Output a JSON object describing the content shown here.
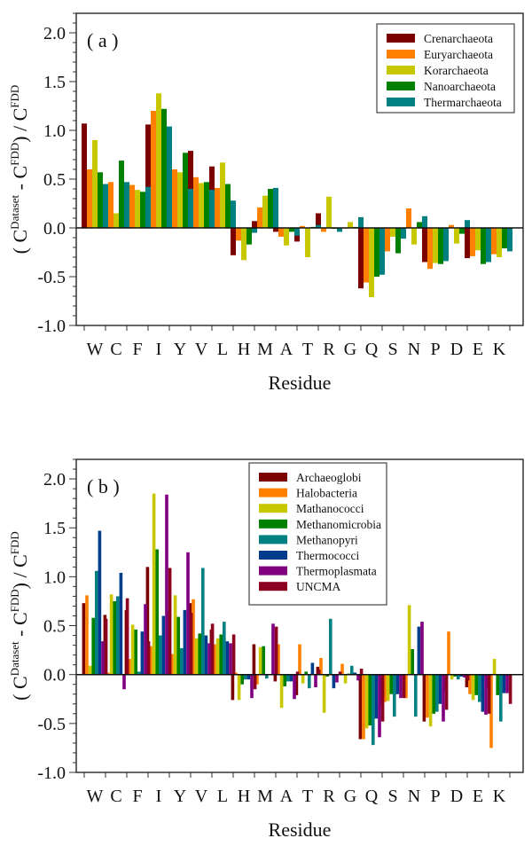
{
  "chart_data": [
    {
      "type": "bar",
      "panel_label": "( a )",
      "title": "",
      "xlabel": "Residue",
      "ylabel": "( C^Dataset - C^FDD ) / C^FDD",
      "ylim": [
        -1.0,
        2.2
      ],
      "yticks": [
        -1.0,
        -0.5,
        0.0,
        0.5,
        1.0,
        1.5,
        2.0
      ],
      "ytick_labels": [
        "-1.0",
        "-0.5",
        "0.0",
        "0.5",
        "1.0",
        "1.5",
        "2.0"
      ],
      "grid": false,
      "legend_position": "upper right",
      "categories": [
        "W",
        "C",
        "F",
        "I",
        "Y",
        "V",
        "L",
        "H",
        "M",
        "A",
        "T",
        "R",
        "G",
        "Q",
        "S",
        "N",
        "P",
        "D",
        "E",
        "K"
      ],
      "series": [
        {
          "name": "Crenarchaeota",
          "color": "#7b0000",
          "values": [
            1.07,
            0.02,
            0.35,
            1.06,
            0.95,
            0.79,
            0.63,
            -0.28,
            0.07,
            -0.04,
            -0.14,
            0.15,
            0.0,
            -0.62,
            -0.27,
            -0.01,
            -0.35,
            -0.24,
            -0.31,
            -0.25
          ]
        },
        {
          "name": "Euryarchaeota",
          "color": "#ff8000",
          "values": [
            0.6,
            0.47,
            0.44,
            1.2,
            0.6,
            0.52,
            0.41,
            -0.13,
            0.21,
            -0.09,
            0.02,
            -0.04,
            0.0,
            -0.56,
            -0.24,
            0.2,
            -0.42,
            0.03,
            -0.29,
            -0.27
          ]
        },
        {
          "name": "Korarchaeota",
          "color": "#c8c800",
          "values": [
            0.9,
            0.15,
            0.39,
            1.38,
            0.57,
            0.46,
            0.67,
            -0.33,
            0.33,
            -0.18,
            -0.3,
            0.32,
            0.06,
            -0.71,
            -0.09,
            -0.17,
            -0.36,
            -0.16,
            -0.23,
            -0.3
          ]
        },
        {
          "name": "Nanoarchaeota",
          "color": "#008000",
          "values": [
            0.57,
            0.69,
            0.37,
            1.22,
            0.77,
            0.47,
            0.45,
            -0.17,
            0.4,
            -0.04,
            0.01,
            -0.01,
            0.01,
            -0.5,
            -0.26,
            0.06,
            -0.37,
            -0.06,
            -0.37,
            -0.21
          ]
        },
        {
          "name": "Thermarchaeota",
          "color": "#008080",
          "values": [
            0.45,
            0.47,
            0.42,
            1.04,
            0.4,
            0.39,
            0.28,
            -0.05,
            0.41,
            -0.08,
            0.03,
            -0.04,
            0.11,
            -0.48,
            -0.11,
            0.12,
            -0.34,
            0.08,
            -0.35,
            -0.24
          ]
        }
      ]
    },
    {
      "type": "bar",
      "panel_label": "( b )",
      "title": "",
      "xlabel": "Residue",
      "ylabel": "( C^Dataset - C^FDD ) / C^FDD",
      "ylim": [
        -1.0,
        2.2
      ],
      "yticks": [
        -1.0,
        -0.5,
        0.0,
        0.5,
        1.0,
        1.5,
        2.0
      ],
      "ytick_labels": [
        "-1.0",
        "-0.5",
        "0.0",
        "0.5",
        "1.0",
        "1.5",
        "2.0"
      ],
      "grid": false,
      "legend_position": "upper center",
      "categories": [
        "W",
        "C",
        "F",
        "I",
        "Y",
        "V",
        "L",
        "H",
        "M",
        "A",
        "T",
        "R",
        "G",
        "Q",
        "S",
        "N",
        "P",
        "D",
        "E",
        "K"
      ],
      "series": [
        {
          "name": "Archaeoglobi",
          "color": "#7b0000",
          "values": [
            0.73,
            0.61,
            0.66,
            1.1,
            0.65,
            0.73,
            0.46,
            -0.26,
            0.31,
            -0.07,
            -0.21,
            0.08,
            0.0,
            -0.66,
            -0.31,
            -0.02,
            -0.48,
            -0.17,
            -0.13,
            -0.14
          ]
        },
        {
          "name": "Halobacteria",
          "color": "#ff8000",
          "values": [
            0.81,
            0.02,
            0.16,
            0.29,
            0.21,
            0.77,
            0.31,
            0.02,
            -0.1,
            0.31,
            0.31,
            0.17,
            0.11,
            -0.66,
            -0.28,
            -0.24,
            -0.44,
            0.44,
            -0.2,
            -0.75
          ]
        },
        {
          "name": "Mathanococci",
          "color": "#c8c800",
          "values": [
            0.09,
            0.82,
            0.51,
            1.85,
            0.81,
            0.37,
            0.37,
            -0.26,
            0.28,
            -0.34,
            -0.09,
            -0.39,
            -0.09,
            -0.55,
            -0.27,
            0.71,
            -0.53,
            -0.05,
            -0.26,
            0.16
          ]
        },
        {
          "name": "Methanomicrobia",
          "color": "#008000",
          "values": [
            0.58,
            0.75,
            0.46,
            1.28,
            0.59,
            0.42,
            0.41,
            -0.1,
            0.29,
            -0.12,
            0.03,
            -0.02,
            0.01,
            -0.52,
            -0.2,
            0.26,
            -0.4,
            -0.02,
            -0.21,
            -0.21
          ]
        },
        {
          "name": "Methanopyri",
          "color": "#008080",
          "values": [
            1.06,
            0.8,
            0.03,
            0.4,
            0.27,
            1.09,
            0.54,
            -0.05,
            -0.04,
            -0.07,
            -0.14,
            0.57,
            0.09,
            -0.72,
            -0.43,
            -0.43,
            -0.38,
            -0.05,
            -0.28,
            -0.48
          ]
        },
        {
          "name": "Thermococci",
          "color": "#003c8c",
          "values": [
            1.47,
            1.04,
            0.44,
            0.6,
            0.66,
            0.4,
            0.34,
            -0.05,
            0.0,
            -0.07,
            0.12,
            -0.14,
            0.02,
            -0.45,
            -0.2,
            0.49,
            -0.3,
            -0.02,
            -0.38,
            -0.19
          ]
        },
        {
          "name": "Thermoplasmata",
          "color": "#800080",
          "values": [
            0.34,
            -0.15,
            0.72,
            1.84,
            1.25,
            0.32,
            0.32,
            -0.24,
            0.52,
            -0.25,
            -0.13,
            -0.08,
            -0.06,
            -0.64,
            -0.24,
            0.54,
            -0.48,
            -0.03,
            -0.41,
            -0.19
          ]
        },
        {
          "name": "UNCMA",
          "color": "#8c0020",
          "values": [
            0.57,
            0.78,
            0.34,
            1.09,
            0.63,
            0.52,
            0.41,
            -0.15,
            0.49,
            0.03,
            0.05,
            0.03,
            0.06,
            -0.48,
            -0.24,
            0.0,
            -0.36,
            -0.06,
            -0.4,
            -0.3
          ]
        }
      ]
    }
  ]
}
